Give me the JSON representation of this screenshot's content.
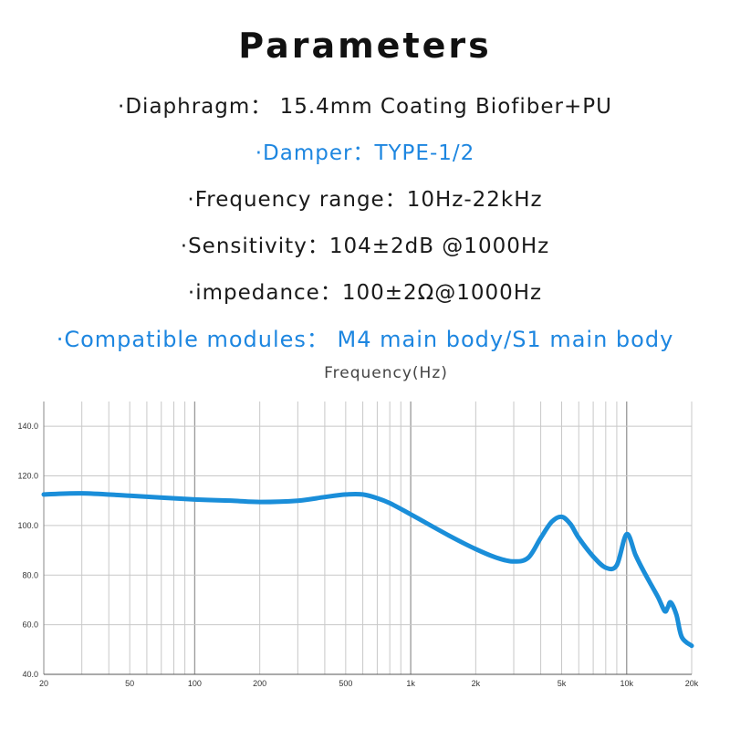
{
  "header": {
    "title": "Parameters"
  },
  "params": [
    {
      "text": "·Diaphragm： 15.4mm Coating Biofiber+PU"
    },
    {
      "text": "·Damper：TYPE-1/2"
    },
    {
      "text": "·Frequency range：10Hz-22kHz"
    },
    {
      "text": "·Sensitivity：104±2dB @1000Hz"
    },
    {
      "text": "·impedance：100±2Ω@1000Hz"
    },
    {
      "text": "·Compatible modules：  M4 main body/S1 main body"
    }
  ],
  "colors": {
    "highlight": "#1d86e0",
    "curve": "#1a8ed9",
    "grid": "#c8c8c8"
  },
  "chart_data": {
    "type": "line",
    "title": "Frequency(Hz)",
    "xscale": "log",
    "xlim": [
      20,
      20000
    ],
    "ylim": [
      40,
      150
    ],
    "grid": true,
    "x_ticks": [
      {
        "value": 20,
        "label": "20"
      },
      {
        "value": 50,
        "label": "50"
      },
      {
        "value": 100,
        "label": "100"
      },
      {
        "value": 200,
        "label": "200"
      },
      {
        "value": 500,
        "label": "500"
      },
      {
        "value": 1000,
        "label": "1k"
      },
      {
        "value": 2000,
        "label": "2k"
      },
      {
        "value": 5000,
        "label": "5k"
      },
      {
        "value": 10000,
        "label": "10k"
      },
      {
        "value": 20000,
        "label": "20k"
      }
    ],
    "y_ticks": [
      {
        "value": 40,
        "label": "40.0"
      },
      {
        "value": 60,
        "label": "60.0"
      },
      {
        "value": 80,
        "label": "80.0"
      },
      {
        "value": 100,
        "label": "100.0"
      },
      {
        "value": 120,
        "label": "120.0"
      },
      {
        "value": 140,
        "label": "140.0"
      }
    ],
    "series": [
      {
        "x": [
          20,
          30,
          50,
          100,
          150,
          200,
          300,
          400,
          500,
          600,
          700,
          800,
          1000,
          1500,
          2000,
          2500,
          3000,
          3500,
          4000,
          4500,
          5000,
          5500,
          6000,
          7000,
          8000,
          9000,
          10000,
          11000,
          12000,
          13000,
          14000,
          15000,
          15500,
          16000,
          17000,
          18000,
          20000
        ],
        "y": [
          112.5,
          113,
          112,
          110.5,
          110,
          109.5,
          110,
          111.5,
          112.5,
          112.5,
          111,
          109,
          104.5,
          96,
          90.5,
          87,
          85.5,
          87,
          95,
          101.5,
          103.5,
          100.5,
          95,
          87.5,
          83,
          84,
          96.5,
          88,
          81.5,
          76,
          71,
          65.5,
          67,
          69,
          64,
          55,
          51.5
        ]
      }
    ]
  }
}
